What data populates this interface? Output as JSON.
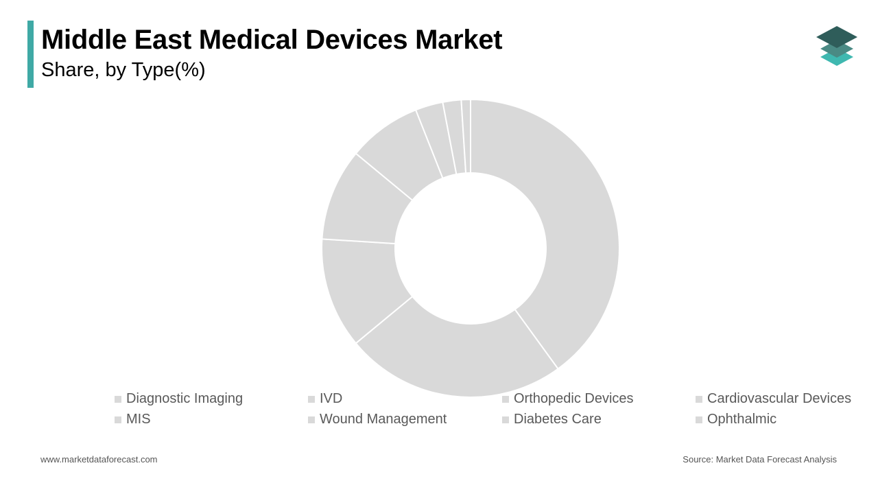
{
  "header": {
    "title": "Middle East Medical Devices Market",
    "subtitle": "Share, by Type(%)"
  },
  "colors": {
    "accent": "#3fa9a5",
    "slice": "#d9d9d9",
    "slice_border": "#ffffff",
    "logo_top": "#2f5d5a",
    "logo_mid": "#4a8a84",
    "logo_bottom": "#3fb8b0"
  },
  "logo": {
    "icon": "stacked-layers-icon"
  },
  "chart_data": {
    "type": "pie",
    "donut": true,
    "title": "Middle East Medical Devices Market",
    "subtitle": "Share, by Type(%)",
    "legend_placement": "bottom",
    "categories": [
      "Diagnostic Imaging",
      "IVD",
      "Orthopedic Devices",
      "Cardiovascular Devices",
      "MIS",
      "Wound Management",
      "Diabetes Care",
      "Ophthalmic"
    ],
    "values": [
      40,
      24,
      12,
      10,
      8,
      3,
      2,
      1
    ]
  },
  "footer": {
    "website": "www.marketdataforecast.com",
    "source": "Source: Market Data Forecast Analysis"
  }
}
